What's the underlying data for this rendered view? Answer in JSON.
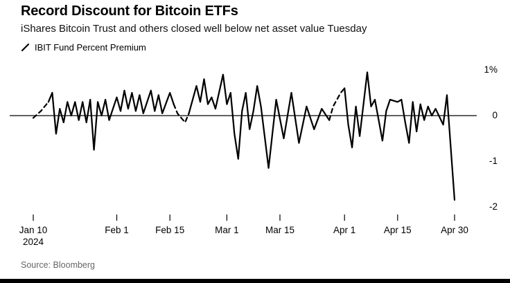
{
  "chart_data": {
    "type": "line",
    "title": "Record Discount for Bitcoin ETFs",
    "subtitle": "iShares Bitcoin Trust and others closed well below net asset value Tuesday",
    "legend": [
      {
        "label": "IBIT Fund Percent Premium",
        "marker": "slash-line",
        "color": "#000000"
      }
    ],
    "xlabel": "",
    "ylabel": "",
    "unit": "%",
    "ylim": [
      -2.2,
      1.2
    ],
    "x_range_days": [
      0,
      111
    ],
    "grid": "zero-line-only",
    "legend_position": "top-left",
    "yticks": [
      {
        "value": 1,
        "label": "1%"
      },
      {
        "value": 0,
        "label": "0"
      },
      {
        "value": -1,
        "label": "-1"
      },
      {
        "value": -2,
        "label": "-2"
      }
    ],
    "xticks": [
      {
        "day": 0,
        "label": "Jan 10",
        "sublabel": "2024"
      },
      {
        "day": 22,
        "label": "Feb 1"
      },
      {
        "day": 36,
        "label": "Feb 15"
      },
      {
        "day": 51,
        "label": "Mar 1"
      },
      {
        "day": 65,
        "label": "Mar 15"
      },
      {
        "day": 82,
        "label": "Apr 1"
      },
      {
        "day": 96,
        "label": "Apr 15"
      },
      {
        "day": 111,
        "label": "Apr 30"
      }
    ],
    "series": [
      {
        "name": "IBIT Fund Percent Premium",
        "color": "#000000",
        "points": [
          [
            0,
            -0.05,
            1
          ],
          [
            2,
            0.1,
            1
          ],
          [
            4,
            0.3
          ],
          [
            5,
            0.5
          ],
          [
            6,
            -0.4
          ],
          [
            7,
            0.15
          ],
          [
            8,
            -0.15
          ],
          [
            9,
            0.3
          ],
          [
            10,
            0
          ],
          [
            11,
            0.3
          ],
          [
            12,
            -0.1
          ],
          [
            13,
            0.3
          ],
          [
            14,
            -0.15
          ],
          [
            15,
            0.35
          ],
          [
            16,
            -0.75
          ],
          [
            17,
            0.3
          ],
          [
            18,
            0
          ],
          [
            19,
            0.35
          ],
          [
            20,
            -0.1
          ],
          [
            22,
            0.4
          ],
          [
            23,
            0.1
          ],
          [
            24,
            0.55
          ],
          [
            25,
            0.15
          ],
          [
            26,
            0.5
          ],
          [
            27,
            0.1
          ],
          [
            28,
            0.45
          ],
          [
            29,
            0.05
          ],
          [
            31,
            0.55
          ],
          [
            32,
            0.1
          ],
          [
            33,
            0.45
          ],
          [
            34,
            0.05
          ],
          [
            36,
            0.5
          ],
          [
            37,
            0.25,
            1
          ],
          [
            38,
            0.05,
            1
          ],
          [
            40,
            -0.15,
            1
          ],
          [
            41,
            0.05
          ],
          [
            43,
            0.65
          ],
          [
            44,
            0.3
          ],
          [
            45,
            0.8
          ],
          [
            46,
            0.25
          ],
          [
            47,
            0.4
          ],
          [
            48,
            0.15
          ],
          [
            50,
            0.9
          ],
          [
            51,
            0.25
          ],
          [
            52,
            0.5
          ],
          [
            53,
            -0.4
          ],
          [
            54,
            -0.95
          ],
          [
            55,
            0.1
          ],
          [
            56,
            0.5
          ],
          [
            57,
            -0.3
          ],
          [
            58,
            0.1
          ],
          [
            59,
            0.65
          ],
          [
            60,
            0.2
          ],
          [
            62,
            -1.15
          ],
          [
            64,
            0.35
          ],
          [
            66,
            -0.5
          ],
          [
            68,
            0.5
          ],
          [
            70,
            -0.6
          ],
          [
            72,
            0.2
          ],
          [
            74,
            -0.3
          ],
          [
            76,
            0.15
          ],
          [
            78,
            -0.1,
            1
          ],
          [
            79,
            0.2,
            1
          ],
          [
            81,
            0.5,
            1
          ],
          [
            82,
            0.6
          ],
          [
            83,
            -0.2
          ],
          [
            84,
            -0.7
          ],
          [
            85,
            0.2
          ],
          [
            86,
            -0.45
          ],
          [
            88,
            0.95
          ],
          [
            89,
            0.2
          ],
          [
            90,
            0.35
          ],
          [
            91,
            -0.1
          ],
          [
            92,
            -0.55
          ],
          [
            93,
            0.1
          ],
          [
            94,
            0.35
          ],
          [
            96,
            0.3
          ],
          [
            97,
            0.35
          ],
          [
            98,
            -0.15
          ],
          [
            99,
            -0.6
          ],
          [
            100,
            0.3
          ],
          [
            101,
            -0.35
          ],
          [
            102,
            0.25
          ],
          [
            103,
            -0.1
          ],
          [
            104,
            0.2
          ],
          [
            105,
            0
          ],
          [
            106,
            0.15
          ],
          [
            108,
            -0.2
          ],
          [
            109,
            0.45
          ],
          [
            111,
            -1.85
          ]
        ]
      }
    ]
  },
  "footer": {
    "source": "Source: Bloomberg"
  },
  "style": {
    "line_color": "#000000",
    "axis_color": "#000000",
    "source_color": "#666666",
    "background": "#ffffff"
  }
}
